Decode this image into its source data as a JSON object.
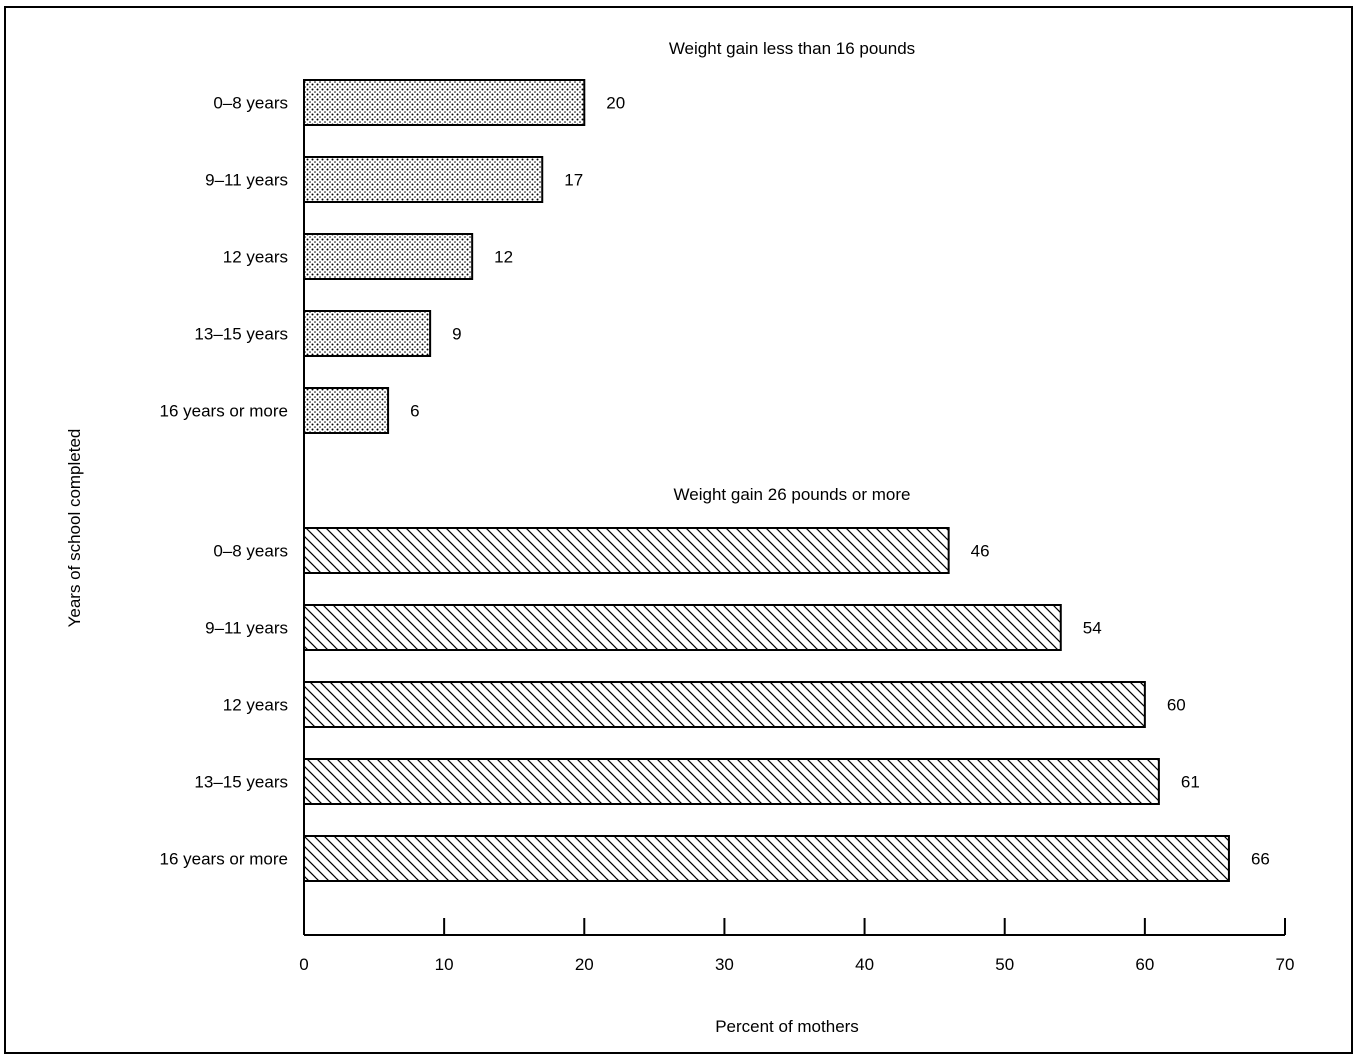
{
  "chart_data": [
    {
      "type": "bar",
      "orientation": "horizontal",
      "title": "Weight gain less than 16 pounds",
      "categories": [
        "0–8 years",
        "9–11 years",
        "12 years",
        "13–15 years",
        "16 years or more"
      ],
      "values": [
        20,
        17,
        12,
        9,
        6
      ],
      "pattern": "dots"
    },
    {
      "type": "bar",
      "orientation": "horizontal",
      "title": "Weight gain 26 pounds or more",
      "categories": [
        "0–8 years",
        "9–11 years",
        "12 years",
        "13–15 years",
        "16 years or more"
      ],
      "values": [
        46,
        54,
        60,
        61,
        66
      ],
      "pattern": "diagonal-hatch"
    }
  ],
  "axes": {
    "xlabel": "Percent of mothers",
    "ylabel": "Years of school completed",
    "xlim": [
      0,
      70
    ],
    "xticks": [
      "0",
      "10",
      "20",
      "30",
      "40",
      "50",
      "60",
      "70"
    ]
  }
}
